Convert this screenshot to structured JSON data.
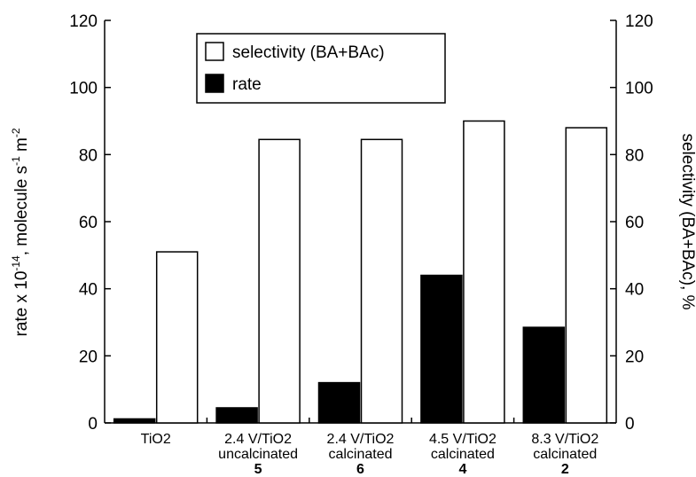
{
  "chart_data": {
    "type": "bar",
    "categories": [
      {
        "line1": "TiO2",
        "line2": "",
        "num": ""
      },
      {
        "line1": "2.4 V/TiO2",
        "line2": "uncalcinated",
        "num": "5"
      },
      {
        "line1": "2.4 V/TiO2",
        "line2": "calcinated",
        "num": "6"
      },
      {
        "line1": "4.5 V/TiO2",
        "line2": "calcinated",
        "num": "4"
      },
      {
        "line1": "8.3 V/TiO2",
        "line2": "calcinated",
        "num": "2"
      }
    ],
    "series": [
      {
        "name": "rate",
        "axis": "left",
        "color": "#000000",
        "values": [
          1.2,
          4.5,
          12,
          44,
          28.5
        ]
      },
      {
        "name": "selectivity (BA+BAc)",
        "axis": "right",
        "color": "#ffffff",
        "values": [
          51,
          84.5,
          84.5,
          90,
          88
        ]
      }
    ],
    "ylabel_left": {
      "base": "rate x 10",
      "exp1": "-14",
      "mid": ", molecule s",
      "exp2": "-1",
      "mid2": " m",
      "exp3": "-2"
    },
    "ylabel_right": "selectivity (BA+BAc), %",
    "ylim_left": [
      0,
      120
    ],
    "ylim_right": [
      0,
      120
    ],
    "yticks": [
      0,
      20,
      40,
      60,
      80,
      100,
      120
    ],
    "legend": {
      "placement": "top-center",
      "entries": [
        {
          "label": "selectivity (BA+BAc)",
          "fill": "#ffffff"
        },
        {
          "label": "rate",
          "fill": "#000000"
        }
      ]
    }
  }
}
